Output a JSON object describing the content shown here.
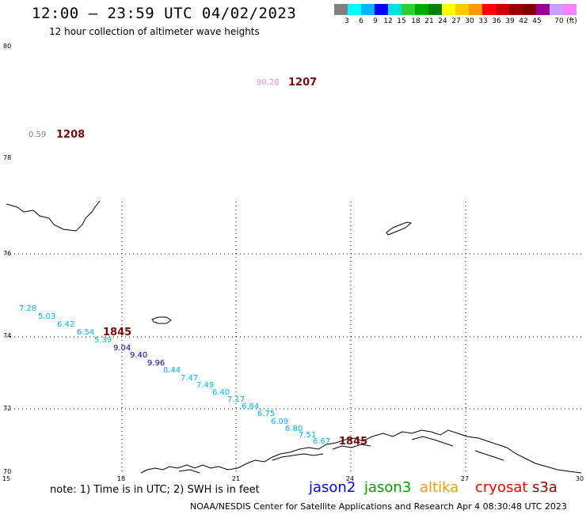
{
  "header": {
    "title": "12:00 – 23:59 UTC 04/02/2023",
    "subtitle": "12 hour collection of altimeter wave heights"
  },
  "color_scale": {
    "colors": [
      "#808080",
      "#00ffff",
      "#00b4ff",
      "#0000ff",
      "#00e1e1",
      "#32cd32",
      "#00aa00",
      "#008000",
      "#ffff00",
      "#ffcc00",
      "#ff9900",
      "#ff0000",
      "#cc0000",
      "#990000",
      "#800000",
      "#990099",
      "#c8a0ff",
      "#ff80ff",
      "#000000"
    ],
    "labels": [
      "3",
      "6",
      "9",
      "12",
      "15",
      "18",
      "21",
      "24",
      "27",
      "30",
      "33",
      "36",
      "39",
      "42",
      "45",
      "70",
      "(ft)"
    ]
  },
  "axes": {
    "lat_labels": [
      "80",
      "78",
      "76",
      "74",
      "72",
      "70"
    ],
    "lon_labels": [
      "15",
      "18",
      "21",
      "24",
      "27",
      "30"
    ]
  },
  "observations": [
    {
      "value": "90.26",
      "color": "#ee88ee"
    },
    {
      "value": "0.59",
      "color": "#808080"
    },
    {
      "value": "7.28",
      "color": "#00b4ff"
    },
    {
      "value": "5.03",
      "color": "#00b4ff"
    },
    {
      "value": "6.42",
      "color": "#00b4ff"
    },
    {
      "value": "6.54",
      "color": "#00b4ff"
    },
    {
      "value": "5.39",
      "color": "#00b4ff"
    },
    {
      "value": "9.04",
      "color": "#0000b4"
    },
    {
      "value": "9.40",
      "color": "#0000b4"
    },
    {
      "value": "9.96",
      "color": "#0000b4"
    },
    {
      "value": "8.44",
      "color": "#00b4ff"
    },
    {
      "value": "7.47",
      "color": "#00b4ff"
    },
    {
      "value": "7.49",
      "color": "#00b4ff"
    },
    {
      "value": "6.40",
      "color": "#00b4ff"
    },
    {
      "value": "7.17",
      "color": "#00b4ff"
    },
    {
      "value": "6.84",
      "color": "#00b4ff"
    },
    {
      "value": "6.75",
      "color": "#00b4ff"
    },
    {
      "value": "6.09",
      "color": "#00b4ff"
    },
    {
      "value": "6.80",
      "color": "#00b4ff"
    },
    {
      "value": "7.51",
      "color": "#00b4ff"
    },
    {
      "value": "6.67",
      "color": "#00b4ff"
    }
  ],
  "times": [
    "1207",
    "1208",
    "1845",
    "1845"
  ],
  "footer": {
    "note": "note:  1) Time is in UTC;  2) SWH is in feet",
    "satellites": [
      {
        "name": "jason2",
        "color": "#0000ff"
      },
      {
        "name": "jason3",
        "color": "#00a000"
      },
      {
        "name": "altika",
        "color": "#ff9900"
      },
      {
        "name": "cryosat",
        "color": "#ff0000"
      },
      {
        "name": "s3a",
        "color": "#990000"
      }
    ],
    "credit": "NOAA/NESDIS Center for Satellite Applications and Research     Apr  4 08:30:48 UTC 2023"
  }
}
